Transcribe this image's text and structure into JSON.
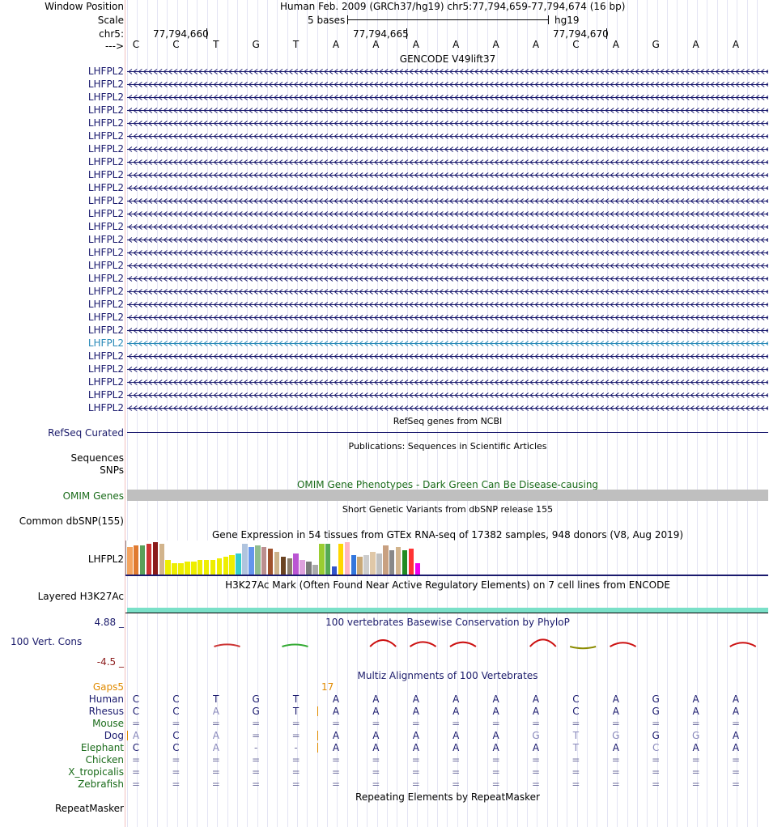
{
  "header": {
    "window_position_label": "Window Position",
    "window_position_value": "Human Feb. 2009 (GRCh37/hg19)   chr5:77,794,659-77,794,674 (16 bp)",
    "scale_label": "Scale",
    "scale_value": "5 bases",
    "scale_assembly": "hg19",
    "chrom_label": "chr5:",
    "ruler_ticks": [
      "77,794,660",
      "77,794,665",
      "77,794,670"
    ],
    "strand_label": "--->"
  },
  "sequence": [
    "C",
    "C",
    "T",
    "G",
    "T",
    "A",
    "A",
    "A",
    "A",
    "A",
    "A",
    "C",
    "A",
    "G",
    "A",
    "A"
  ],
  "gencode": {
    "title": "GENCODE V49lift37",
    "gene_name": "LHFPL2",
    "row_count": 27,
    "highlight_row": 21,
    "colors": {
      "normal": "#1a1a6e",
      "highlight": "#2a8ab8"
    }
  },
  "refseq": {
    "title": "RefSeq genes from NCBI",
    "label": "RefSeq Curated"
  },
  "publications": {
    "title": "Publications: Sequences in Scientific Articles",
    "label1": "Sequences",
    "label2": "SNPs"
  },
  "omim": {
    "title": "OMIM Gene Phenotypes - Dark Green Can Be Disease-causing",
    "label": "OMIM Genes"
  },
  "dbsnp": {
    "title": "Short Genetic Variants from dbSNP release 155",
    "label": "Common dbSNP(155)"
  },
  "gtex": {
    "title": "Gene Expression in 54 tissues from GTEx RNA-seq of 17382 samples, 948 donors (V8, Aug 2019)",
    "label": "LHFPL2",
    "bars": [
      {
        "v": 0.85,
        "c": "#f4a460"
      },
      {
        "v": 0.9,
        "c": "#e07a30"
      },
      {
        "v": 0.9,
        "c": "#5aa05a"
      },
      {
        "v": 0.95,
        "c": "#cc3333"
      },
      {
        "v": 1.0,
        "c": "#8b1a1a"
      },
      {
        "v": 0.95,
        "c": "#d2b48c"
      },
      {
        "v": 0.45,
        "c": "#eeee00"
      },
      {
        "v": 0.35,
        "c": "#eeee00"
      },
      {
        "v": 0.35,
        "c": "#eeee00"
      },
      {
        "v": 0.4,
        "c": "#eeee00"
      },
      {
        "v": 0.4,
        "c": "#eeee00"
      },
      {
        "v": 0.45,
        "c": "#eeee00"
      },
      {
        "v": 0.45,
        "c": "#eeee00"
      },
      {
        "v": 0.45,
        "c": "#eeee00"
      },
      {
        "v": 0.5,
        "c": "#eeee00"
      },
      {
        "v": 0.55,
        "c": "#eeee00"
      },
      {
        "v": 0.6,
        "c": "#eeee00"
      },
      {
        "v": 0.65,
        "c": "#33cccc"
      },
      {
        "v": 0.95,
        "c": "#b0c4de"
      },
      {
        "v": 0.85,
        "c": "#6495ed"
      },
      {
        "v": 0.9,
        "c": "#8fbc8f"
      },
      {
        "v": 0.85,
        "c": "#bc8f8f"
      },
      {
        "v": 0.8,
        "c": "#a0522d"
      },
      {
        "v": 0.7,
        "c": "#cdb38b"
      },
      {
        "v": 0.55,
        "c": "#6b4423"
      },
      {
        "v": 0.5,
        "c": "#8b7d6b"
      },
      {
        "v": 0.65,
        "c": "#ba55d3"
      },
      {
        "v": 0.45,
        "c": "#dda0dd"
      },
      {
        "v": 0.4,
        "c": "#7a7a7a"
      },
      {
        "v": 0.3,
        "c": "#aaaaaa"
      },
      {
        "v": 0.95,
        "c": "#9acd32"
      },
      {
        "v": 0.95,
        "c": "#55aa55"
      },
      {
        "v": 0.25,
        "c": "#3355cc"
      },
      {
        "v": 0.95,
        "c": "#ffd700"
      },
      {
        "v": 1.0,
        "c": "#ffb6c1"
      },
      {
        "v": 0.6,
        "c": "#3377dd"
      },
      {
        "v": 0.55,
        "c": "#c8a878"
      },
      {
        "v": 0.6,
        "c": "#cccccc"
      },
      {
        "v": 0.7,
        "c": "#e0c8a8"
      },
      {
        "v": 0.65,
        "c": "#c0c0c0"
      },
      {
        "v": 0.9,
        "c": "#c8a080"
      },
      {
        "v": 0.75,
        "c": "#888888"
      },
      {
        "v": 0.85,
        "c": "#d2b48c"
      },
      {
        "v": 0.75,
        "c": "#228b22"
      },
      {
        "v": 0.8,
        "c": "#ff3333"
      },
      {
        "v": 0.35,
        "c": "#ee00ee"
      }
    ]
  },
  "h3k27ac": {
    "title": "H3K27Ac Mark (Often Found Near Active Regulatory Elements) on 7 cell lines from ENCODE",
    "label": "Layered H3K27Ac",
    "color": "#7ae0c8"
  },
  "phylop": {
    "title": "100 vertebrates Basewise Conservation by PhyloP",
    "label": "100 Vert. Cons",
    "max": "4.88 _",
    "min": "-4.5 _",
    "peaks": [
      {
        "pos": 2.5,
        "h": 0.1,
        "c": "#cc3333"
      },
      {
        "pos": 4.2,
        "h": 0.08,
        "c": "#33aa33"
      },
      {
        "pos": 6.4,
        "h": 1.0,
        "c": "#cc1111"
      },
      {
        "pos": 7.4,
        "h": 0.6,
        "c": "#cc1111"
      },
      {
        "pos": 8.4,
        "h": 0.55,
        "c": "#cc1111"
      },
      {
        "pos": 10.4,
        "h": 1.1,
        "c": "#cc1111"
      },
      {
        "pos": 11.4,
        "h": -0.7,
        "c": "#8b8b00"
      },
      {
        "pos": 12.4,
        "h": 0.45,
        "c": "#cc1111"
      },
      {
        "pos": 15.4,
        "h": 0.45,
        "c": "#cc1111"
      }
    ]
  },
  "multiz": {
    "title": "Multiz Alignments of 100 Vertebrates",
    "gaps_label": "Gaps5",
    "gap_count": "17",
    "species": [
      {
        "name": "Human",
        "color": "#1a1a6e",
        "bases": [
          "C",
          "C",
          "T",
          "G",
          "T",
          "A",
          "A",
          "A",
          "A",
          "A",
          "A",
          "C",
          "A",
          "G",
          "A",
          "A"
        ]
      },
      {
        "name": "Rhesus",
        "color": "#1a1a6e",
        "bases": [
          "C",
          "C",
          "A",
          "G",
          "T",
          "A",
          "A",
          "A",
          "A",
          "A",
          "A",
          "C",
          "A",
          "G",
          "A",
          "A"
        ],
        "dim": [
          2
        ],
        "gap_after": 4
      },
      {
        "name": "Mouse",
        "color": "#1a6b1a",
        "bases": [
          "=",
          "=",
          "=",
          "=",
          "=",
          "=",
          "=",
          "=",
          "=",
          "=",
          "=",
          "=",
          "=",
          "=",
          "=",
          "="
        ]
      },
      {
        "name": "Dog",
        "color": "#1a1a6e",
        "bases": [
          "A",
          "C",
          "A",
          "=",
          "=",
          "A",
          "A",
          "A",
          "A",
          "A",
          "G",
          "T",
          "G",
          "G",
          "G",
          "A"
        ],
        "dim": [
          0,
          2,
          10,
          11,
          12,
          14
        ],
        "gap_after": 4,
        "gap_before": 0
      },
      {
        "name": "Elephant",
        "color": "#1a6b1a",
        "bases": [
          "C",
          "C",
          "A",
          "-",
          "-",
          "A",
          "A",
          "A",
          "A",
          "A",
          "A",
          "T",
          "A",
          "C",
          "A",
          "A"
        ],
        "dim": [
          2,
          11,
          13
        ],
        "gap_after": 4
      },
      {
        "name": "Chicken",
        "color": "#1a6b1a",
        "bases": [
          "=",
          "=",
          "=",
          "=",
          "=",
          "=",
          "=",
          "=",
          "=",
          "=",
          "=",
          "=",
          "=",
          "=",
          "=",
          "="
        ]
      },
      {
        "name": "X_tropicalis",
        "color": "#1a6b1a",
        "bases": [
          "=",
          "=",
          "=",
          "=",
          "=",
          "=",
          "=",
          "=",
          "=",
          "=",
          "=",
          "=",
          "=",
          "=",
          "=",
          "="
        ]
      },
      {
        "name": "Zebrafish",
        "color": "#1a6b1a",
        "bases": [
          "=",
          "=",
          "=",
          "=",
          "=",
          "=",
          "=",
          "=",
          "=",
          "=",
          "=",
          "=",
          "=",
          "=",
          "=",
          "="
        ]
      }
    ]
  },
  "repeatmasker": {
    "title": "Repeating Elements by RepeatMasker",
    "label": "RepeatMasker"
  }
}
